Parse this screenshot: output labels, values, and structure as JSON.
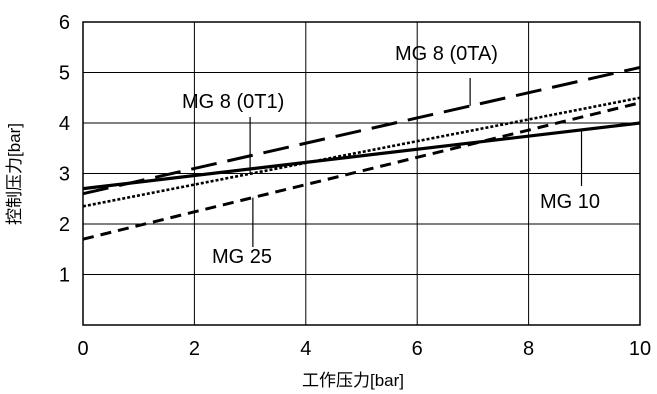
{
  "chart_data": {
    "type": "line",
    "xlabel": "工作压力[bar]",
    "xlabel_main": "工作压力",
    "xlabel_unit": "[bar]",
    "ylabel": "控制压力[bar]",
    "ylabel_main": "控制压力",
    "ylabel_unit": "[bar]",
    "xlim": [
      0,
      10
    ],
    "ylim": [
      0,
      6
    ],
    "xticks": [
      "0",
      "2",
      "4",
      "6",
      "8",
      "10"
    ],
    "yticks": [
      "1",
      "2",
      "3",
      "4",
      "5",
      "6"
    ],
    "grid": true,
    "series": [
      {
        "name": "MG 8 (0TA)",
        "style": "long-dash",
        "x": [
          0,
          10
        ],
        "y": [
          2.6,
          5.1
        ]
      },
      {
        "name": "MG 8 (0T1)",
        "style": "dotted",
        "x": [
          0,
          10
        ],
        "y": [
          2.35,
          4.5
        ]
      },
      {
        "name": "MG 25",
        "style": "dashed",
        "x": [
          0,
          10
        ],
        "y": [
          1.7,
          4.4
        ]
      },
      {
        "name": "MG 10",
        "style": "solid",
        "x": [
          0,
          10
        ],
        "y": [
          2.7,
          4.0
        ]
      }
    ]
  }
}
